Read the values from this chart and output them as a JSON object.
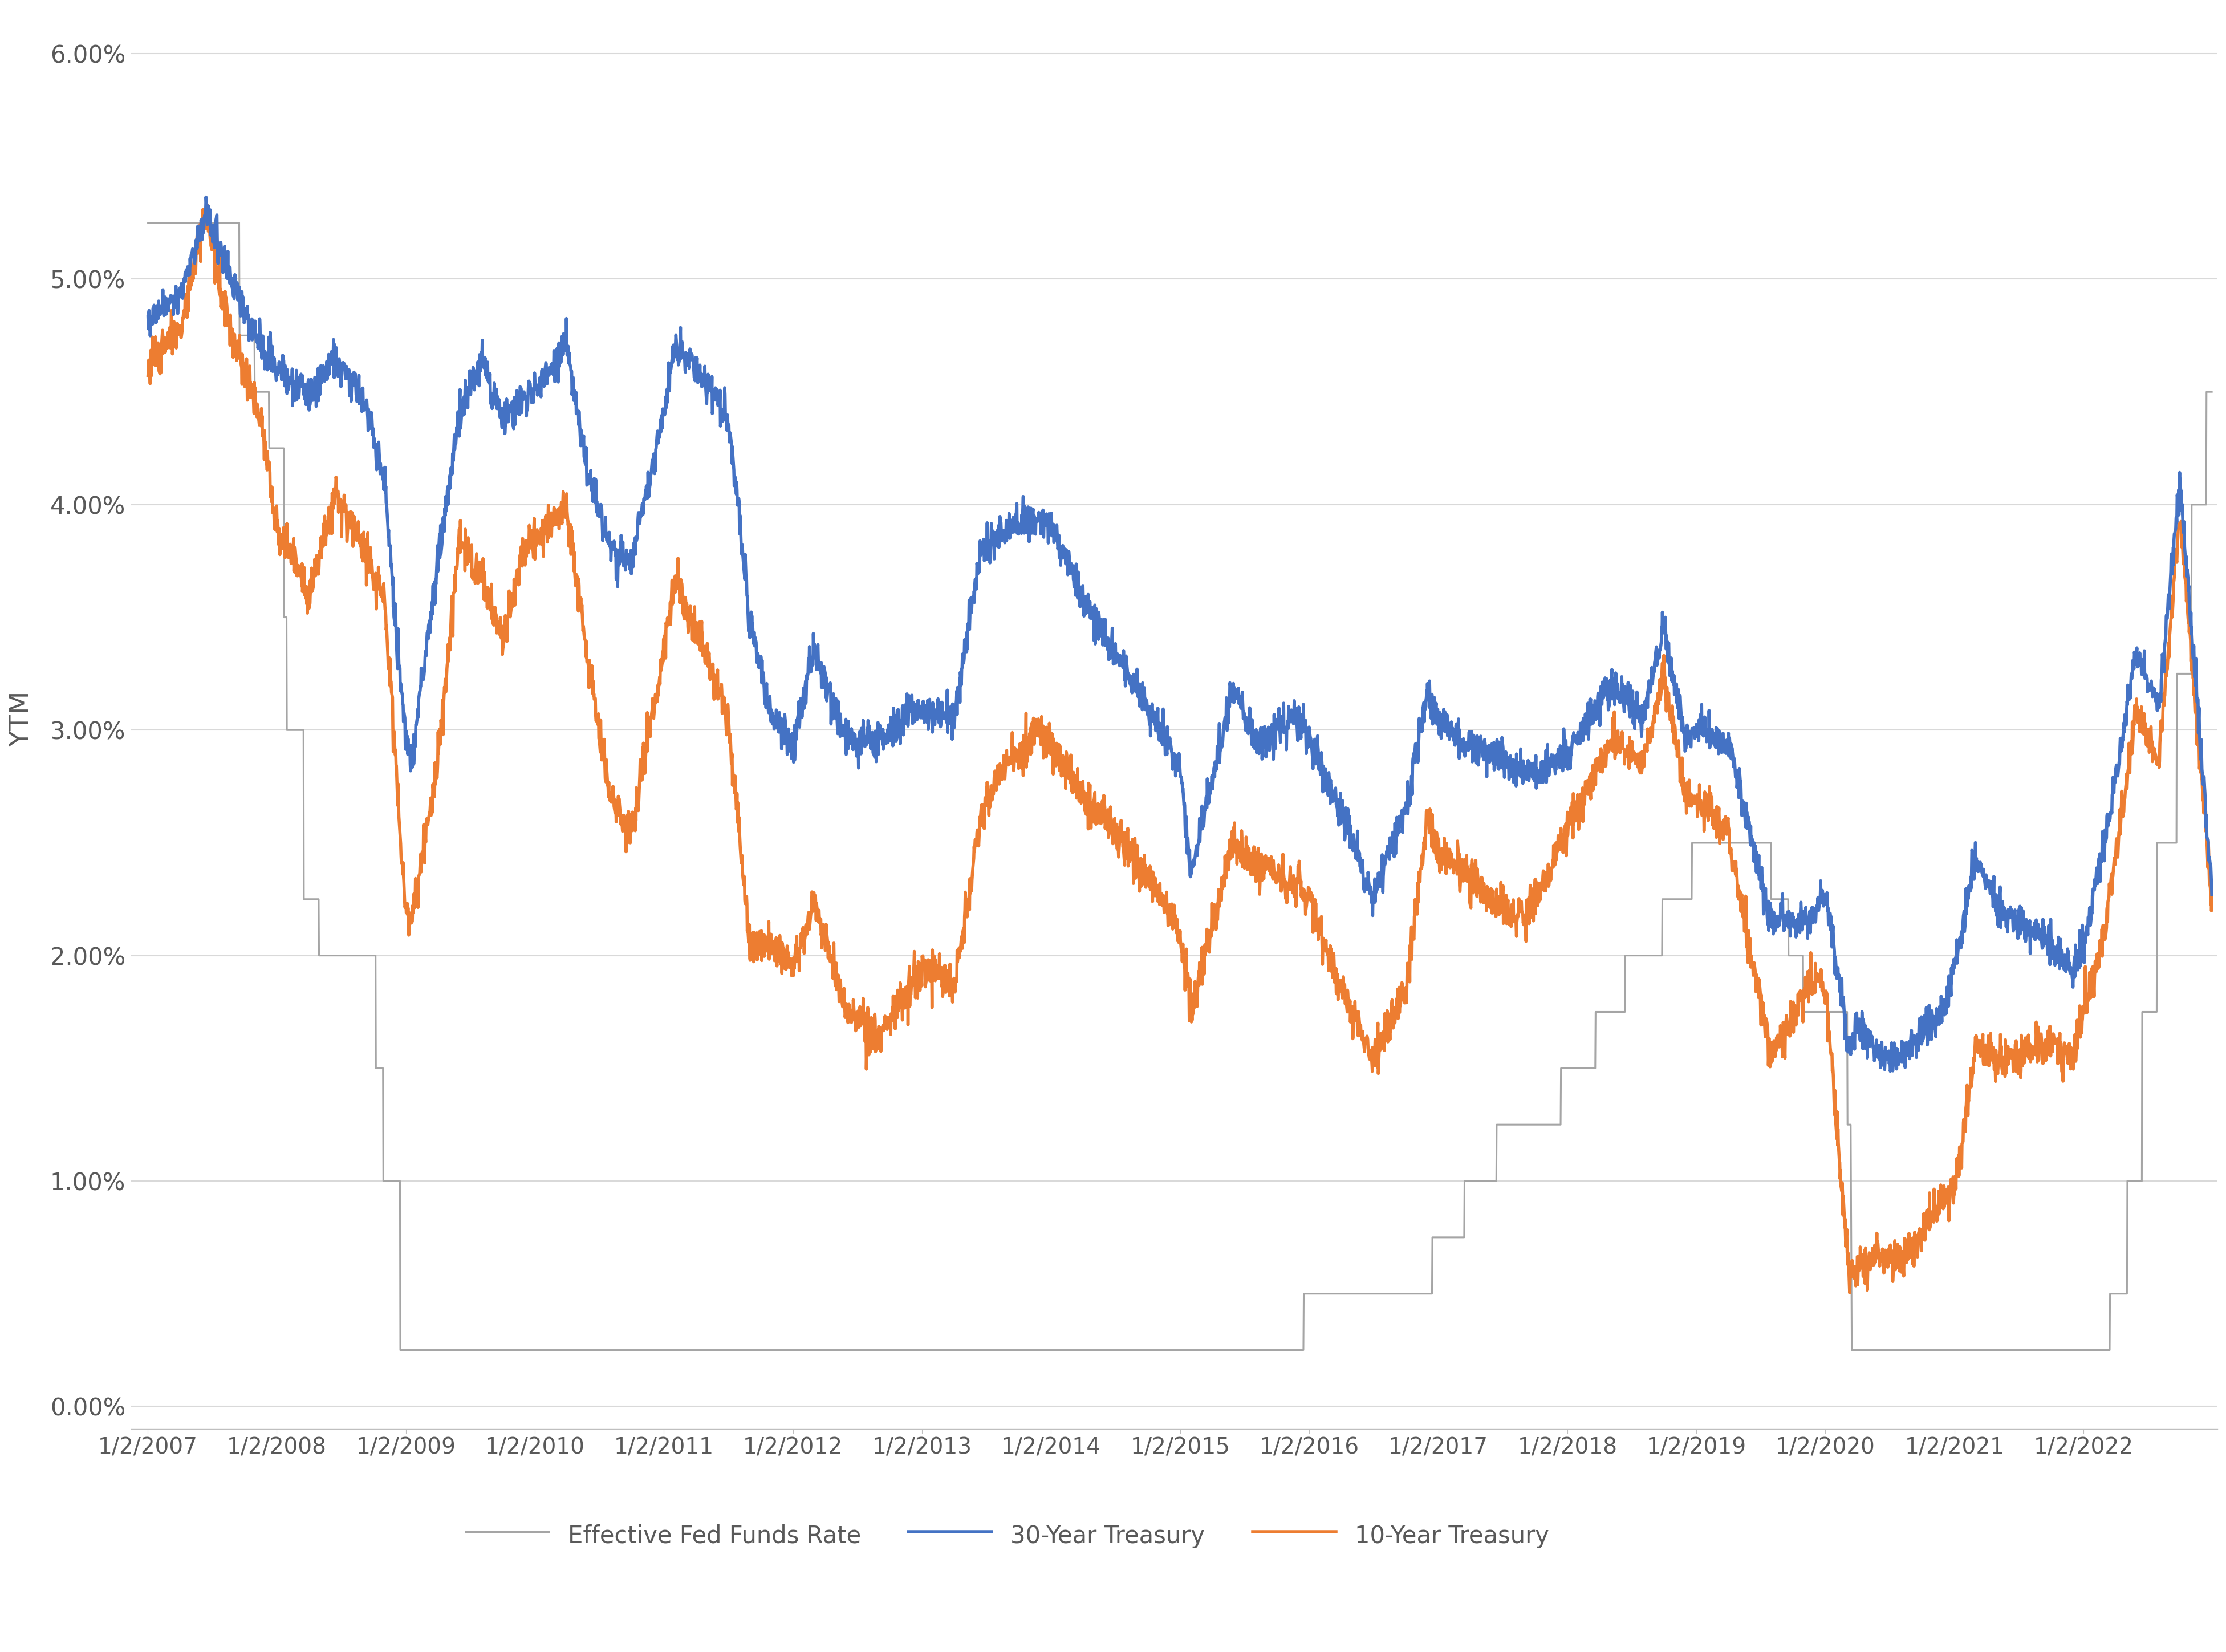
{
  "title": "",
  "ylabel": "YTM",
  "background_color": "#ffffff",
  "thirty_year_color": "#4472C4",
  "ten_year_color": "#ED7D31",
  "fed_funds_color": "#A5A5A5",
  "thirty_year_label": "30-Year Treasury",
  "ten_year_label": "10-Year Treasury",
  "fed_funds_label": "Effective Fed Funds Rate",
  "line_width": 2.2,
  "ylim_min": -0.001,
  "ylim_max": 0.062,
  "yticks": [
    0.0,
    0.01,
    0.02,
    0.03,
    0.04,
    0.05,
    0.06
  ],
  "ytick_labels": [
    "0.00%",
    "1.00%",
    "2.00%",
    "3.00%",
    "4.00%",
    "5.00%",
    "6.00%"
  ],
  "grid_color": "#D9D9D9",
  "tick_color": "#595959",
  "font_color": "#595959"
}
